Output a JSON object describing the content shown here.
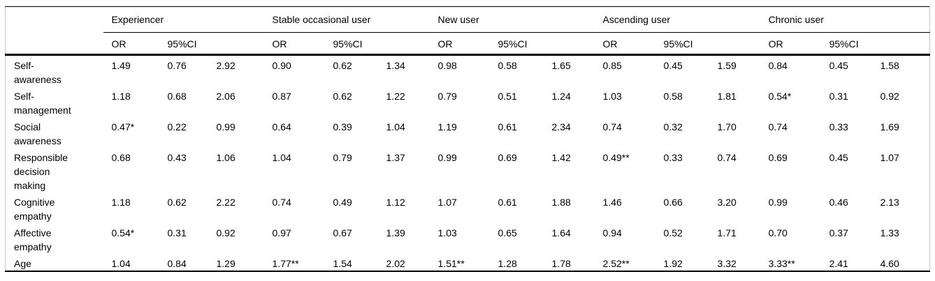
{
  "page": {
    "background": "#ffffff",
    "text_color": "#000000",
    "rule_color": "#000000",
    "side_border_color": "#c4c4c4"
  },
  "table": {
    "corner_label": "",
    "or_label": "OR",
    "ci_label": "95%CI",
    "groups": [
      {
        "label": "Experiencer"
      },
      {
        "label": "Stable occasional user"
      },
      {
        "label": "New user"
      },
      {
        "label": "Ascending user"
      },
      {
        "label": "Chronic user"
      }
    ],
    "rows": [
      {
        "label": "Self-awareness",
        "values": [
          "1.49",
          "0.76",
          "2.92",
          "0.90",
          "0.62",
          "1.34",
          "0.98",
          "0.58",
          "1.65",
          "0.85",
          "0.45",
          "1.59",
          "0.84",
          "0.45",
          "1.58"
        ]
      },
      {
        "label": "Self-management",
        "values": [
          "1.18",
          "0.68",
          "2.06",
          "0.87",
          "0.62",
          "1.22",
          "0.79",
          "0.51",
          "1.24",
          "1.03",
          "0.58",
          "1.81",
          "0.54*",
          "0.31",
          "0.92"
        ]
      },
      {
        "label": "Social awareness",
        "values": [
          "0.47*",
          "0.22",
          "0.99",
          "0.64",
          "0.39",
          "1.04",
          "1.19",
          "0.61",
          "2.34",
          "0.74",
          "0.32",
          "1.70",
          "0.74",
          "0.33",
          "1.69"
        ]
      },
      {
        "label": "Responsible decision making",
        "values": [
          "0.68",
          "0.43",
          "1.06",
          "1.04",
          "0.79",
          "1.37",
          "0.99",
          "0.69",
          "1.42",
          "0.49**",
          "0.33",
          "0.74",
          "0.69",
          "0.45",
          "1.07"
        ]
      },
      {
        "label": "Cognitive empathy",
        "values": [
          "1.18",
          "0.62",
          "2.22",
          "0.74",
          "0.49",
          "1.12",
          "1.07",
          "0.61",
          "1.88",
          "1.46",
          "0.66",
          "3.20",
          "0.99",
          "0.46",
          "2.13"
        ]
      },
      {
        "label": "Affective empathy",
        "values": [
          "0.54*",
          "0.31",
          "0.92",
          "0.97",
          "0.67",
          "1.39",
          "1.03",
          "0.65",
          "1.64",
          "0.94",
          "0.52",
          "1.71",
          "0.70",
          "0.37",
          "1.33"
        ]
      },
      {
        "label": "Age",
        "values": [
          "1.04",
          "0.84",
          "1.29",
          "1.77**",
          "1.54",
          "2.02",
          "1.51**",
          "1.28",
          "1.78",
          "2.52**",
          "1.92",
          "3.32",
          "3.33**",
          "2.41",
          "4.60"
        ]
      }
    ]
  }
}
